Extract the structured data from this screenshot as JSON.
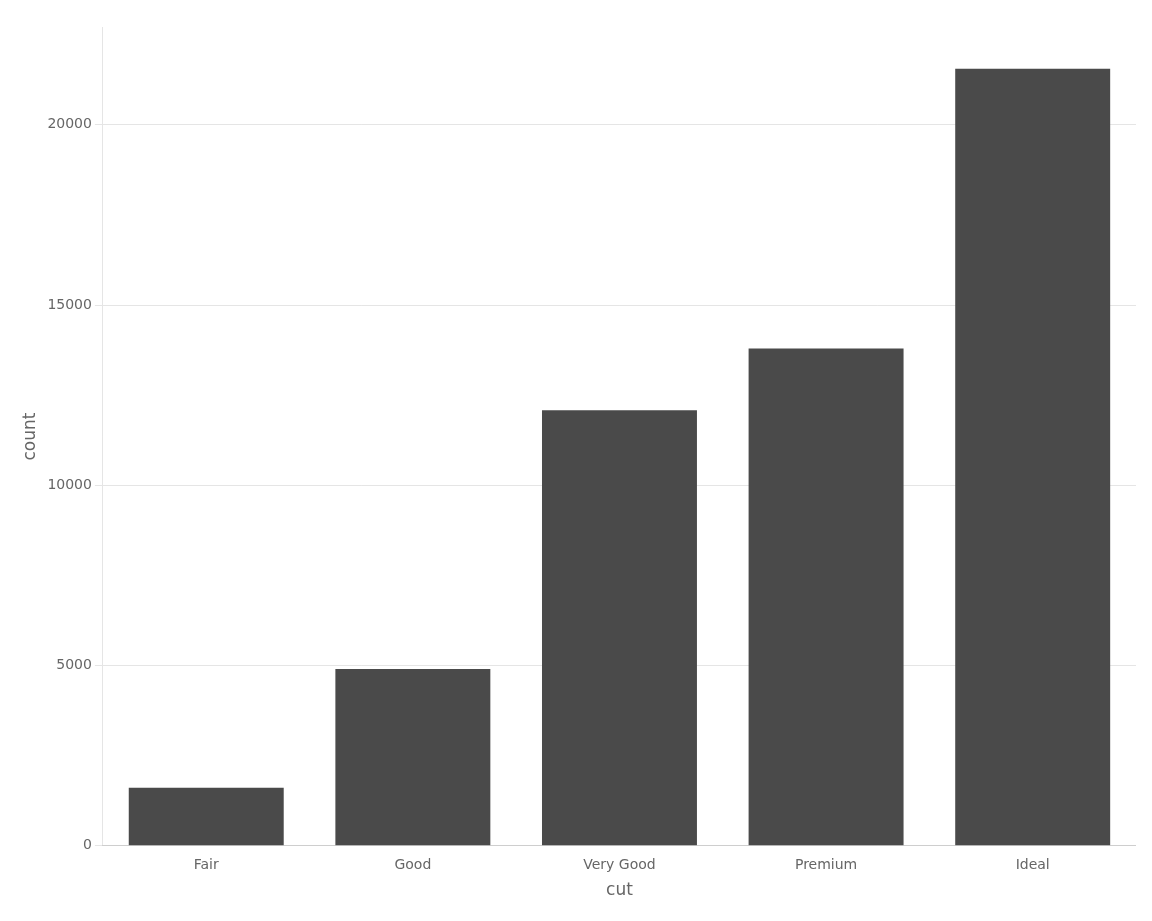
{
  "chart_data": {
    "type": "bar",
    "categories": [
      "Fair",
      "Good",
      "Very Good",
      "Premium",
      "Ideal"
    ],
    "values": [
      1610,
      4906,
      12082,
      13791,
      21551
    ],
    "color": "#4a4a4a",
    "xlabel": "cut",
    "ylabel": "count",
    "ylim": [
      0,
      22700
    ],
    "yticks": [
      0,
      5000,
      10000,
      15000,
      20000
    ],
    "grid": true
  }
}
